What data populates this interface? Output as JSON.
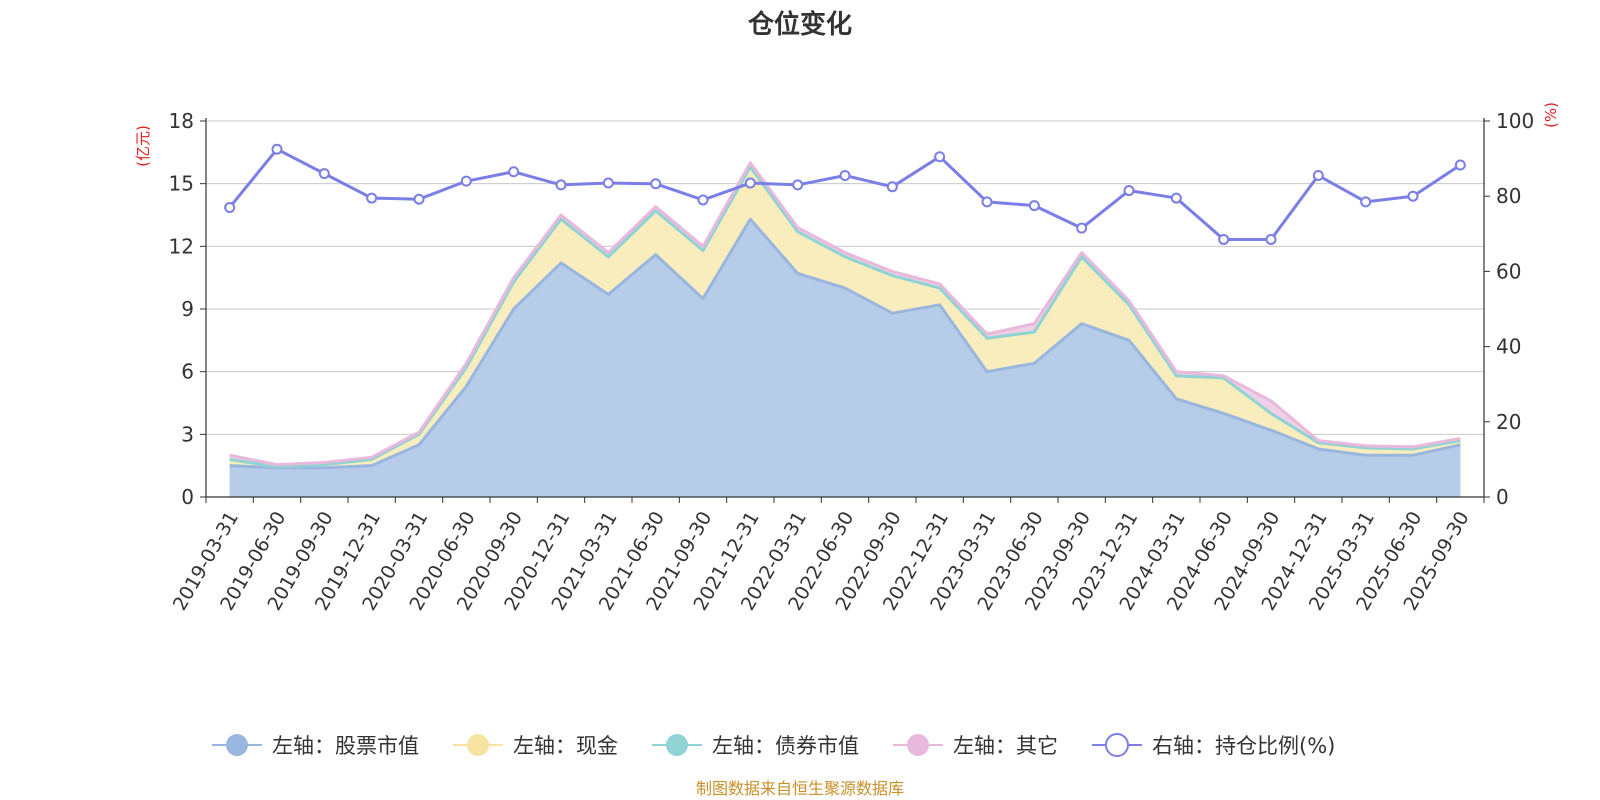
{
  "chart_data": {
    "type": "area",
    "title": "仓位变化",
    "left_unit": "(亿元)",
    "right_unit": "(%)",
    "left_ylim": [
      0,
      18
    ],
    "left_ticks": [
      "0",
      "3",
      "6",
      "9",
      "12",
      "15",
      "18"
    ],
    "right_ylim": [
      0,
      100
    ],
    "right_ticks": [
      "0",
      "20",
      "40",
      "60",
      "80",
      "100"
    ],
    "categories": [
      "2019-03-31",
      "2019-06-30",
      "2019-09-30",
      "2019-12-31",
      "2020-03-31",
      "2020-06-30",
      "2020-09-30",
      "2020-12-31",
      "2021-03-31",
      "2021-06-30",
      "2021-09-30",
      "2021-12-31",
      "2022-03-31",
      "2022-06-30",
      "2022-09-30",
      "2022-12-31",
      "2023-03-31",
      "2023-06-30",
      "2023-09-30",
      "2023-12-31",
      "2024-03-31",
      "2024-06-30",
      "2024-09-30",
      "2024-12-31",
      "2025-03-31",
      "2025-06-30",
      "2025-09-30"
    ],
    "series": [
      {
        "name": "左轴：股票市值",
        "axis": "left",
        "stacked": true,
        "color": "#99b6df",
        "fill": "#b7cce9",
        "values": [
          1.5,
          1.4,
          1.4,
          1.5,
          2.5,
          5.3,
          9.0,
          11.2,
          9.7,
          11.6,
          9.5,
          13.3,
          10.7,
          10.0,
          8.8,
          9.2,
          6.0,
          6.4,
          8.3,
          7.5,
          4.7,
          4.0,
          3.2,
          2.3,
          2.0,
          2.0,
          2.5
        ]
      },
      {
        "name": "左轴：现金",
        "axis": "left",
        "stacked": true,
        "color": "#f6e3a1",
        "fill": "#f9edbe",
        "values": [
          0.3,
          0.05,
          0.15,
          0.3,
          0.5,
          0.9,
          1.3,
          2.1,
          1.8,
          2.1,
          2.3,
          2.5,
          2.0,
          1.5,
          1.8,
          0.8,
          1.6,
          1.5,
          3.2,
          1.7,
          1.1,
          1.7,
          0.8,
          0.3,
          0.35,
          0.3,
          0.2
        ]
      },
      {
        "name": "左轴：债券市值",
        "axis": "left",
        "stacked": true,
        "color": "#8fd3d4",
        "fill": "#b7e3e3",
        "values": [
          0,
          0,
          0,
          0,
          0,
          0,
          0,
          0,
          0,
          0,
          0,
          0,
          0,
          0,
          0,
          0,
          0,
          0,
          0,
          0,
          0,
          0,
          0,
          0,
          0,
          0,
          0
        ]
      },
      {
        "name": "左轴：其它",
        "axis": "left",
        "stacked": true,
        "color": "#e8b9dc",
        "fill": "#efd0e6",
        "values": [
          0.2,
          0.1,
          0.1,
          0.1,
          0.1,
          0.2,
          0.2,
          0.2,
          0.2,
          0.2,
          0.2,
          0.2,
          0.2,
          0.2,
          0.2,
          0.2,
          0.2,
          0.4,
          0.2,
          0.2,
          0.2,
          0.1,
          0.6,
          0.1,
          0.1,
          0.1,
          0.1
        ]
      },
      {
        "name": "右轴：持仓比例(%)",
        "axis": "right",
        "stacked": false,
        "color": "#7a7ee6",
        "fill": "none",
        "values": [
          77,
          92.5,
          86,
          79.5,
          79.2,
          84,
          86.5,
          83,
          83.5,
          83.3,
          79,
          83.5,
          83,
          85.5,
          82.5,
          90.5,
          78.5,
          77.5,
          71.5,
          81.5,
          79.5,
          68.5,
          68.5,
          85.5,
          78.5,
          80,
          88.3
        ]
      }
    ]
  },
  "footer": {
    "source": "制图数据来自恒生聚源数据库",
    "source_color": "#c8902a"
  }
}
